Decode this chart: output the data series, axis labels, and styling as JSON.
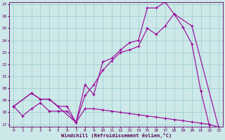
{
  "xlabel": "Windchill (Refroidissement éolien,°C)",
  "bg_color": "#cce8e8",
  "line_color": "#990099",
  "grid_color": "#99cccc",
  "ylim": [
    17,
    27
  ],
  "xlim": [
    -0.5,
    23.5
  ],
  "yticks": [
    17,
    18,
    19,
    20,
    21,
    22,
    23,
    24,
    25,
    26,
    27
  ],
  "xticks": [
    0,
    1,
    2,
    3,
    4,
    5,
    6,
    7,
    8,
    9,
    10,
    11,
    12,
    13,
    14,
    15,
    16,
    17,
    18,
    19,
    20,
    21,
    22,
    23
  ],
  "line1_x": [
    0,
    1,
    2,
    3,
    4,
    5,
    6,
    7,
    8,
    9,
    10,
    11,
    12,
    13,
    14,
    15,
    16,
    17,
    18,
    19,
    20,
    21,
    22,
    23
  ],
  "line1_y": [
    18.5,
    17.7,
    18.3,
    18.8,
    18.1,
    18.1,
    18.1,
    17.15,
    18.3,
    18.3,
    18.2,
    18.1,
    18.0,
    17.9,
    17.8,
    17.7,
    17.6,
    17.5,
    17.4,
    17.3,
    17.2,
    17.1,
    17.0,
    16.75
  ],
  "line2_x": [
    0,
    2,
    3,
    4,
    7,
    8,
    9,
    10,
    11,
    12,
    13,
    14,
    15,
    16,
    17,
    18,
    19,
    20,
    21,
    22,
    23
  ],
  "line2_y": [
    18.5,
    19.6,
    19.1,
    19.1,
    17.15,
    20.3,
    19.5,
    22.2,
    22.5,
    23.2,
    23.8,
    24.0,
    26.7,
    26.7,
    27.2,
    26.2,
    25.1,
    23.7,
    19.8,
    16.75,
    16.75
  ],
  "line3_x": [
    0,
    2,
    3,
    4,
    5,
    6,
    7,
    8,
    9,
    10,
    11,
    12,
    13,
    14,
    15,
    16,
    17,
    18,
    20,
    23
  ],
  "line3_y": [
    18.5,
    19.6,
    19.1,
    19.1,
    18.5,
    18.5,
    17.15,
    19.4,
    20.3,
    21.5,
    22.3,
    23.0,
    23.2,
    23.5,
    25.0,
    24.5,
    25.2,
    26.2,
    25.2,
    16.75
  ]
}
